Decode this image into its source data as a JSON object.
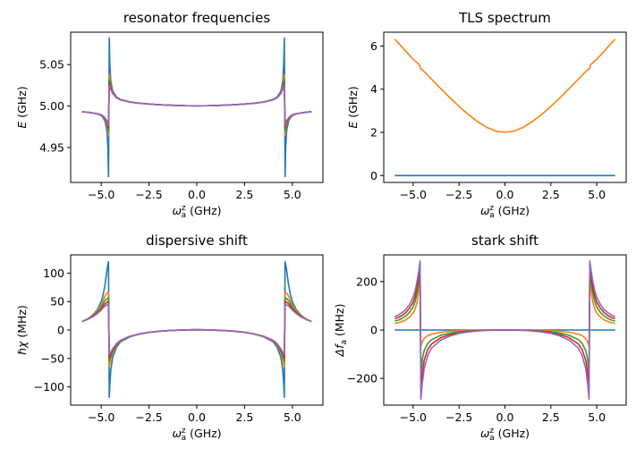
{
  "palette": [
    "#1f77b4",
    "#ff7f0e",
    "#2ca02c",
    "#d62728",
    "#9467bd"
  ],
  "chart_data": [
    {
      "type": "line",
      "title": "resonator frequencies",
      "xlabel": "ω_a^z (GHz)",
      "ylabel": "E (GHz)",
      "xlim": [
        -6.6,
        6.6
      ],
      "ylim": [
        4.908,
        5.089
      ],
      "xticks": [
        -5.0,
        -2.5,
        0.0,
        2.5,
        5.0
      ],
      "xtick_labels": [
        "−5.0",
        "−2.5",
        "0.0",
        "2.5",
        "5.0"
      ],
      "yticks": [
        4.95,
        5.0,
        5.05
      ],
      "ytick_labels": [
        "4.95",
        "5.00",
        "5.05"
      ],
      "grid": false,
      "x": [
        -6,
        -5.8,
        -5.6,
        -5.4,
        -5.2,
        -5.0,
        -4.9,
        -4.8,
        -4.7,
        -4.65,
        -4.62,
        -4.58,
        -4.55,
        -4.5,
        -4.4,
        -4.2,
        -4.0,
        -3.5,
        -3.0,
        -2.5,
        -2,
        -1.5,
        -1,
        -0.5,
        0,
        0.5,
        1,
        1.5,
        2,
        2.5,
        3,
        3.5,
        4.0,
        4.2,
        4.4,
        4.5,
        4.55,
        4.58,
        4.62,
        4.65,
        4.7,
        4.8,
        4.9,
        5.0,
        5.2,
        5.4,
        5.6,
        5.8,
        6
      ],
      "series": [
        {
          "values": [
            4.9931,
            4.9928,
            4.9922,
            4.9915,
            4.9905,
            4.9885,
            4.986,
            4.9815,
            4.97,
            4.95,
            4.915,
            5.082,
            5.05,
            5.03,
            5.018,
            5.011,
            5.008,
            5.005,
            5.0035,
            5.0025,
            5.0017,
            5.0011,
            5.0007,
            5.0004,
            5.0003,
            5.0004,
            5.0007,
            5.0011,
            5.0017,
            5.0025,
            5.0035,
            5.005,
            5.008,
            5.011,
            5.018,
            5.03,
            5.05,
            5.082,
            4.915,
            4.95,
            4.97,
            4.9815,
            4.986,
            4.9885,
            4.9905,
            4.9915,
            4.9922,
            4.9928,
            4.9931
          ]
        },
        {
          "values": [
            4.9931,
            4.9928,
            4.9922,
            4.9915,
            4.9906,
            4.989,
            4.987,
            4.9835,
            4.978,
            4.972,
            4.964,
            5.038,
            5.033,
            5.025,
            5.0165,
            5.0105,
            5.0078,
            5.0049,
            5.0034,
            5.0025,
            5.0017,
            5.0011,
            5.0007,
            5.0004,
            5.0003,
            5.0004,
            5.0007,
            5.0011,
            5.0017,
            5.0025,
            5.0034,
            5.0049,
            5.0078,
            5.0105,
            5.0165,
            5.025,
            5.033,
            5.038,
            4.964,
            4.972,
            4.978,
            4.9835,
            4.987,
            4.989,
            4.9906,
            4.9915,
            4.9922,
            4.9928,
            4.9931
          ]
        },
        {
          "values": [
            4.9931,
            4.9928,
            4.9922,
            4.9915,
            4.9906,
            4.9892,
            4.9874,
            4.9845,
            4.98,
            4.976,
            4.97,
            5.032,
            5.029,
            5.023,
            5.016,
            5.0102,
            5.0077,
            5.0049,
            5.0034,
            5.0025,
            5.0017,
            5.0011,
            5.0007,
            5.0004,
            5.0003,
            5.0004,
            5.0007,
            5.0011,
            5.0017,
            5.0025,
            5.0034,
            5.0049,
            5.0077,
            5.0102,
            5.016,
            5.023,
            5.029,
            5.032,
            4.97,
            4.976,
            4.98,
            4.9845,
            4.9874,
            4.9892,
            4.9906,
            4.9915,
            4.9922,
            4.9928,
            4.9931
          ]
        },
        {
          "values": [
            4.9931,
            4.9928,
            4.9922,
            4.9915,
            4.9907,
            4.9894,
            4.9878,
            4.9852,
            4.9815,
            4.9785,
            4.974,
            5.028,
            5.026,
            5.0215,
            5.0155,
            5.01,
            5.0076,
            5.0048,
            5.0034,
            5.0025,
            5.0017,
            5.0011,
            5.0007,
            5.0004,
            5.0003,
            5.0004,
            5.0007,
            5.0011,
            5.0017,
            5.0025,
            5.0034,
            5.0048,
            5.0076,
            5.01,
            5.0155,
            5.0215,
            5.026,
            5.028,
            4.974,
            4.9785,
            4.9815,
            4.9852,
            4.9878,
            4.9894,
            4.9907,
            4.9915,
            4.9922,
            4.9928,
            4.9931
          ]
        },
        {
          "values": [
            4.9931,
            4.9928,
            4.9922,
            4.9916,
            4.9908,
            4.9896,
            4.9881,
            4.9858,
            4.9826,
            4.9802,
            4.977,
            5.025,
            5.0235,
            5.02,
            5.015,
            5.0098,
            5.0075,
            5.0048,
            5.0034,
            5.0025,
            5.0017,
            5.0011,
            5.0007,
            5.0004,
            5.0003,
            5.0004,
            5.0007,
            5.0011,
            5.0017,
            5.0025,
            5.0034,
            5.0048,
            5.0075,
            5.0098,
            5.015,
            5.02,
            5.0235,
            5.025,
            4.977,
            4.9802,
            4.9826,
            4.9858,
            4.9881,
            4.9896,
            4.9908,
            4.9916,
            4.9922,
            4.9928,
            4.9931
          ]
        }
      ]
    },
    {
      "type": "line",
      "title": "TLS spectrum",
      "xlabel": "ω_a^z (GHz)",
      "ylabel": "E (GHz)",
      "xlim": [
        -6.6,
        6.6
      ],
      "ylim": [
        -0.32,
        6.64
      ],
      "xticks": [
        -5.0,
        -2.5,
        0.0,
        2.5,
        5.0
      ],
      "xtick_labels": [
        "−5.0",
        "−2.5",
        "0.0",
        "2.5",
        "5.0"
      ],
      "yticks": [
        0,
        2,
        4,
        6
      ],
      "ytick_labels": [
        "0",
        "2",
        "4",
        "6"
      ],
      "grid": false,
      "x": [
        -6,
        -5.5,
        -5,
        -4.65,
        -4.6,
        -4.5,
        -4,
        -3.5,
        -3,
        -2.5,
        -2,
        -1.5,
        -1,
        -0.5,
        0,
        0.5,
        1,
        1.5,
        2,
        2.5,
        3,
        3.5,
        4,
        4.5,
        4.6,
        4.65,
        5,
        5.5,
        6
      ],
      "series": [
        {
          "values": [
            0,
            0,
            0,
            0,
            0,
            0,
            0,
            0,
            0,
            0,
            0,
            0,
            0,
            0,
            0,
            0,
            0,
            0,
            0,
            0,
            0,
            0,
            0,
            0,
            0,
            0,
            0,
            0,
            0
          ]
        },
        {
          "values": [
            6.32,
            5.85,
            5.39,
            5.12,
            4.95,
            4.9,
            4.47,
            4.03,
            3.61,
            3.2,
            2.83,
            2.5,
            2.24,
            2.06,
            2.0,
            2.06,
            2.24,
            2.5,
            2.83,
            3.2,
            3.61,
            4.03,
            4.47,
            4.9,
            4.95,
            5.12,
            5.39,
            5.85,
            6.32
          ]
        }
      ]
    },
    {
      "type": "line",
      "title": "dispersive shift",
      "xlabel": "ω_a^z (GHz)",
      "ylabel": "ℏχ (MHz)",
      "xlim": [
        -6.6,
        6.6
      ],
      "ylim": [
        -132,
        132
      ],
      "xticks": [
        -5.0,
        -2.5,
        0.0,
        2.5,
        5.0
      ],
      "xtick_labels": [
        "−5.0",
        "−2.5",
        "0.0",
        "2.5",
        "5.0"
      ],
      "yticks": [
        -100,
        -50,
        0,
        50,
        100
      ],
      "ytick_labels": [
        "−100",
        "−50",
        "0",
        "50",
        "100"
      ],
      "grid": false,
      "x": [
        -6,
        -5.8,
        -5.6,
        -5.4,
        -5.2,
        -5.0,
        -4.9,
        -4.8,
        -4.7,
        -4.65,
        -4.62,
        -4.58,
        -4.55,
        -4.5,
        -4.4,
        -4.2,
        -4.0,
        -3.5,
        -3.0,
        -2.5,
        -2,
        -1.5,
        -1,
        -0.5,
        0,
        0.5,
        1,
        1.5,
        2,
        2.5,
        3,
        3.5,
        4.0,
        4.2,
        4.4,
        4.5,
        4.55,
        4.58,
        4.62,
        4.65,
        4.7,
        4.8,
        4.9,
        5.0,
        5.2,
        5.4,
        5.6,
        5.8,
        6
      ],
      "series": [
        {
          "values": [
            15,
            18,
            22,
            28,
            36,
            50,
            62,
            80,
            105,
            115,
            120,
            -118,
            -95,
            -70,
            -48,
            -30,
            -21,
            -12,
            -7,
            -4,
            -2.2,
            -1,
            -0.3,
            0.3,
            0.5,
            0.3,
            -0.3,
            -1,
            -2.2,
            -4,
            -7,
            -12,
            -21,
            -30,
            -48,
            -70,
            -95,
            -118,
            120,
            115,
            105,
            80,
            62,
            50,
            36,
            28,
            22,
            18,
            15
          ]
        },
        {
          "values": [
            15,
            18,
            22,
            27,
            34,
            44,
            52,
            60,
            65,
            66,
            66,
            -64,
            -60,
            -52,
            -40,
            -27,
            -20,
            -11.5,
            -7,
            -4,
            -2.2,
            -1,
            -0.3,
            0.3,
            0.5,
            0.3,
            -0.3,
            -1,
            -2.2,
            -4,
            -7,
            -11.5,
            -20,
            -27,
            -40,
            -52,
            -60,
            -64,
            66,
            66,
            65,
            60,
            52,
            44,
            34,
            27,
            22,
            18,
            15
          ]
        },
        {
          "values": [
            15,
            18,
            21,
            26,
            32,
            40,
            46,
            52,
            55,
            56,
            56,
            -54,
            -51,
            -46,
            -37,
            -26,
            -19,
            -11.5,
            -7,
            -4,
            -2.2,
            -1,
            -0.3,
            0.3,
            0.5,
            0.3,
            -0.3,
            -1,
            -2.2,
            -4,
            -7,
            -11.5,
            -19,
            -26,
            -37,
            -46,
            -51,
            -54,
            56,
            56,
            55,
            52,
            46,
            40,
            32,
            26,
            21,
            18,
            15
          ]
        },
        {
          "values": [
            15,
            17.5,
            21,
            25,
            30,
            37,
            42,
            46,
            49,
            50,
            50,
            -48,
            -46,
            -42,
            -35,
            -25,
            -18.5,
            -11,
            -7,
            -4,
            -2.2,
            -1,
            -0.3,
            0.3,
            0.5,
            0.3,
            -0.3,
            -1,
            -2.2,
            -4,
            -7,
            -11,
            -18.5,
            -25,
            -35,
            -42,
            -46,
            -48,
            50,
            50,
            49,
            46,
            42,
            37,
            30,
            25,
            21,
            17.5,
            15
          ]
        },
        {
          "values": [
            15,
            17.5,
            20.5,
            24,
            29,
            35,
            39,
            42,
            44,
            45,
            45,
            -43,
            -42,
            -39,
            -33,
            -24,
            -18,
            -11,
            -7,
            -4,
            -2.2,
            -1,
            -0.3,
            0.3,
            0.5,
            0.3,
            -0.3,
            -1,
            -2.2,
            -4,
            -7,
            -11,
            -18,
            -24,
            -33,
            -39,
            -42,
            -43,
            45,
            45,
            44,
            42,
            39,
            35,
            29,
            24,
            20.5,
            17.5,
            15
          ]
        }
      ]
    },
    {
      "type": "line",
      "title": "stark shift",
      "xlabel": "ω_a^z (GHz)",
      "ylabel": "Δf_a (MHz)",
      "xlim": [
        -6.6,
        6.6
      ],
      "ylim": [
        -310,
        310
      ],
      "xticks": [
        -5.0,
        -2.5,
        0.0,
        2.5,
        5.0
      ],
      "xtick_labels": [
        "−5.0",
        "−2.5",
        "0.0",
        "2.5",
        "5.0"
      ],
      "yticks": [
        -200,
        0,
        200
      ],
      "ytick_labels": [
        "−200",
        "0",
        "200"
      ],
      "grid": false,
      "x": [
        -6,
        -5.8,
        -5.6,
        -5.4,
        -5.2,
        -5.0,
        -4.9,
        -4.8,
        -4.7,
        -4.65,
        -4.62,
        -4.58,
        -4.55,
        -4.5,
        -4.4,
        -4.2,
        -4.0,
        -3.5,
        -3.0,
        -2.5,
        -2,
        -1.5,
        -1,
        -0.5,
        0,
        0.5,
        1,
        1.5,
        2,
        2.5,
        3,
        3.5,
        4.0,
        4.2,
        4.4,
        4.5,
        4.55,
        4.58,
        4.62,
        4.65,
        4.7,
        4.8,
        4.9,
        5.0,
        5.2,
        5.4,
        5.6,
        5.8,
        6
      ],
      "series": [
        {
          "values": [
            0,
            0,
            0,
            0,
            0,
            0,
            0,
            0,
            0,
            0,
            0,
            0,
            0,
            0,
            0,
            0,
            0,
            0,
            0,
            0,
            0,
            0,
            0,
            0,
            0,
            0,
            0,
            0,
            0,
            0,
            0,
            0,
            0,
            0,
            0,
            0,
            0,
            0,
            0,
            0,
            0,
            0,
            0,
            0,
            0,
            0,
            0,
            0,
            0
          ]
        },
        {
          "values": [
            27,
            30,
            35,
            42,
            53,
            70,
            85,
            110,
            150,
            185,
            210,
            -65,
            -60,
            -48,
            -35,
            -23,
            -17,
            -9.5,
            -5.5,
            -3.2,
            -1.7,
            -0.8,
            -0.3,
            -0.05,
            0,
            -0.05,
            -0.3,
            -0.8,
            -1.7,
            -3.2,
            -5.5,
            -9.5,
            -17,
            -23,
            -35,
            -48,
            -60,
            -65,
            210,
            185,
            150,
            110,
            85,
            70,
            53,
            42,
            35,
            30,
            27
          ]
        },
        {
          "values": [
            37,
            41,
            48,
            58,
            72,
            95,
            115,
            145,
            190,
            225,
            245,
            -180,
            -160,
            -120,
            -85,
            -55,
            -40,
            -22,
            -13,
            -7.5,
            -4,
            -2,
            -0.8,
            -0.2,
            0,
            -0.2,
            -0.8,
            -2,
            -4,
            -7.5,
            -13,
            -22,
            -40,
            -55,
            -85,
            -120,
            -160,
            -180,
            245,
            225,
            190,
            145,
            115,
            95,
            72,
            58,
            48,
            41,
            37
          ]
        },
        {
          "values": [
            47,
            52,
            60,
            72,
            90,
            115,
            137,
            170,
            215,
            250,
            265,
            -245,
            -225,
            -180,
            -125,
            -80,
            -58,
            -32,
            -19,
            -11,
            -6,
            -3,
            -1.2,
            -0.3,
            0,
            -0.3,
            -1.2,
            -3,
            -6,
            -11,
            -19,
            -32,
            -58,
            -80,
            -125,
            -180,
            -225,
            -245,
            265,
            250,
            215,
            170,
            137,
            115,
            90,
            72,
            60,
            52,
            47
          ]
        },
        {
          "values": [
            56,
            62,
            72,
            85,
            105,
            135,
            160,
            195,
            240,
            270,
            285,
            -285,
            -265,
            -220,
            -160,
            -105,
            -75,
            -42,
            -25,
            -14,
            -8,
            -4,
            -1.6,
            -0.4,
            0,
            -0.4,
            -1.6,
            -4,
            -8,
            -14,
            -25,
            -42,
            -75,
            -105,
            -160,
            -220,
            -265,
            -285,
            285,
            270,
            240,
            195,
            160,
            135,
            105,
            85,
            72,
            62,
            56
          ]
        }
      ]
    }
  ]
}
